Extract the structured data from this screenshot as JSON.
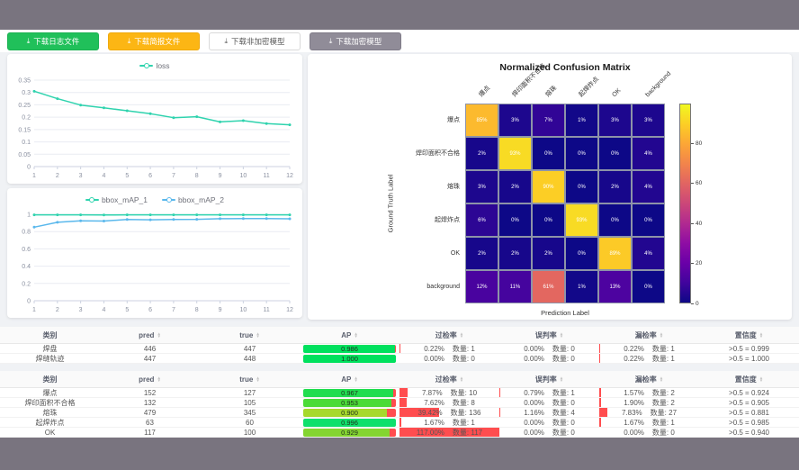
{
  "toolbar": {
    "download_icon": "⤓",
    "buttons": [
      {
        "label": "下载日志文件",
        "variant": "green"
      },
      {
        "label": "下载简报文件",
        "variant": "orange"
      },
      {
        "label": "下载非加密模型",
        "variant": "white"
      },
      {
        "label": "下载加密模型",
        "variant": "gray"
      }
    ]
  },
  "chart_data": [
    {
      "type": "line",
      "title": "loss",
      "x": [
        1,
        2,
        3,
        4,
        5,
        6,
        7,
        8,
        9,
        10,
        11,
        12
      ],
      "series": [
        {
          "name": "loss",
          "color": "#2fd3ae",
          "values": [
            0.305,
            0.275,
            0.249,
            0.238,
            0.226,
            0.214,
            0.198,
            0.202,
            0.181,
            0.186,
            0.174,
            0.169
          ]
        }
      ],
      "ylim": [
        0,
        0.35
      ],
      "yticks": [
        0,
        0.05,
        0.1,
        0.15,
        0.2,
        0.25,
        0.3,
        0.35
      ],
      "grid": true,
      "legend_position": "top"
    },
    {
      "type": "line",
      "title": "bbox_mAP",
      "x": [
        1,
        2,
        3,
        4,
        5,
        6,
        7,
        8,
        9,
        10,
        11,
        12
      ],
      "series": [
        {
          "name": "bbox_mAP_1",
          "color": "#2fd3ae",
          "values": [
            0.993,
            0.993,
            0.993,
            0.992,
            0.993,
            0.993,
            0.993,
            0.993,
            0.993,
            0.993,
            0.993,
            0.993
          ]
        },
        {
          "name": "bbox_mAP_2",
          "color": "#5ab8ec",
          "values": [
            0.851,
            0.908,
            0.925,
            0.922,
            0.94,
            0.936,
            0.94,
            0.941,
            0.949,
            0.951,
            0.95,
            0.948
          ]
        }
      ],
      "ylim": [
        0,
        1
      ],
      "yticks": [
        0,
        0.2,
        0.4,
        0.6,
        0.8,
        1
      ],
      "grid": true,
      "legend_position": "top"
    },
    {
      "type": "heatmap",
      "title": "Normalized Confusion Matrix",
      "xlabel": "Prediction Label",
      "ylabel": "Ground Truth Label",
      "labels": [
        "爆点",
        "焊印面积不合格",
        "熔珠",
        "起焊炸点",
        "OK",
        "background"
      ],
      "values": [
        [
          85,
          3,
          7,
          1,
          3,
          3
        ],
        [
          2,
          93,
          0,
          0,
          0,
          4
        ],
        [
          3,
          2,
          90,
          0,
          2,
          4
        ],
        [
          6,
          0,
          0,
          93,
          0,
          0
        ],
        [
          2,
          2,
          2,
          0,
          89,
          4
        ],
        [
          12,
          11,
          61,
          1,
          13,
          0
        ]
      ],
      "unit": "%",
      "colormap": "plasma",
      "colorbar_ticks": [
        0,
        20,
        40,
        60,
        80
      ]
    }
  ],
  "table_columns": [
    {
      "label": "类别",
      "sortable": false
    },
    {
      "label": "pred",
      "sortable": true
    },
    {
      "label": "true",
      "sortable": true
    },
    {
      "label": "AP",
      "sortable": true
    },
    {
      "label": "过检率",
      "sortable": true
    },
    {
      "label": "误判率",
      "sortable": true
    },
    {
      "label": "漏检率",
      "sortable": true
    },
    {
      "label": "置信度",
      "sortable": true
    }
  ],
  "count_label": "数量:",
  "bar_red": "#ff4d4f",
  "tables": [
    {
      "rows": [
        {
          "name": "焊盘",
          "pred": "446",
          "true": "447",
          "ap": 0.986,
          "ap_display": "0.986",
          "ap_color": "#00e15e",
          "overdetect": {
            "pct": "0.22%",
            "count": "数量: 1",
            "bar": 0.22
          },
          "misjudge": {
            "pct": "0.00%",
            "count": "数量: 0",
            "bar": 0
          },
          "miss": {
            "pct": "0.22%",
            "count": "数量: 1",
            "bar": 0.22
          },
          "confidence": ">0.5 = 0.999"
        },
        {
          "name": "焊缝轨迹",
          "pred": "447",
          "true": "448",
          "ap": 1.0,
          "ap_display": "1.000",
          "ap_color": "#00e15e",
          "overdetect": {
            "pct": "0.00%",
            "count": "数量: 0",
            "bar": 0
          },
          "misjudge": {
            "pct": "0.00%",
            "count": "数量: 0",
            "bar": 0
          },
          "miss": {
            "pct": "0.22%",
            "count": "数量: 1",
            "bar": 0.22
          },
          "confidence": ">0.5 = 1.000"
        }
      ]
    },
    {
      "rows": [
        {
          "name": "爆点",
          "pred": "152",
          "true": "127",
          "ap": 0.967,
          "ap_display": "0.967",
          "ap_color": "#21dd4f",
          "overdetect": {
            "pct": "7.87%",
            "count": "数量: 10",
            "bar": 7.87
          },
          "misjudge": {
            "pct": "0.79%",
            "count": "数量: 1",
            "bar": 0.79
          },
          "miss": {
            "pct": "1.57%",
            "count": "数量: 2",
            "bar": 1.57
          },
          "confidence": ">0.5 = 0.924"
        },
        {
          "name": "焊印面积不合格",
          "pred": "132",
          "true": "105",
          "ap": 0.953,
          "ap_display": "0.953",
          "ap_color": "#4bdb38",
          "overdetect": {
            "pct": "7.62%",
            "count": "数量: 8",
            "bar": 7.62
          },
          "misjudge": {
            "pct": "0.00%",
            "count": "数量: 0",
            "bar": 0
          },
          "miss": {
            "pct": "1.90%",
            "count": "数量: 2",
            "bar": 1.9
          },
          "confidence": ">0.5 = 0.905"
        },
        {
          "name": "熔珠",
          "pred": "479",
          "true": "345",
          "ap": 0.9,
          "ap_display": "0.900",
          "ap_color": "#a6d92c",
          "overdetect": {
            "pct": "39.42%",
            "count": "数量: 136",
            "bar": 39.42
          },
          "misjudge": {
            "pct": "1.16%",
            "count": "数量: 4",
            "bar": 1.16
          },
          "miss": {
            "pct": "7.83%",
            "count": "数量: 27",
            "bar": 7.83
          },
          "confidence": ">0.5 = 0.881"
        },
        {
          "name": "起焊炸点",
          "pred": "63",
          "true": "60",
          "ap": 0.996,
          "ap_display": "0.996",
          "ap_color": "#0ee06c",
          "overdetect": {
            "pct": "1.67%",
            "count": "数量: 1",
            "bar": 1.67
          },
          "misjudge": {
            "pct": "0.00%",
            "count": "数量: 0",
            "bar": 0
          },
          "miss": {
            "pct": "1.67%",
            "count": "数量: 1",
            "bar": 1.67
          },
          "confidence": ">0.5 = 0.985"
        },
        {
          "name": "OK",
          "pred": "117",
          "true": "100",
          "ap": 0.929,
          "ap_display": "0.929",
          "ap_color": "#84d531",
          "overdetect": {
            "pct": "117.00%",
            "count": "数量: 117",
            "bar": 117
          },
          "misjudge": {
            "pct": "0.00%",
            "count": "数量: 0",
            "bar": 0
          },
          "miss": {
            "pct": "0.00%",
            "count": "数量: 0",
            "bar": 0
          },
          "confidence": ">0.5 = 0.940"
        }
      ]
    }
  ]
}
